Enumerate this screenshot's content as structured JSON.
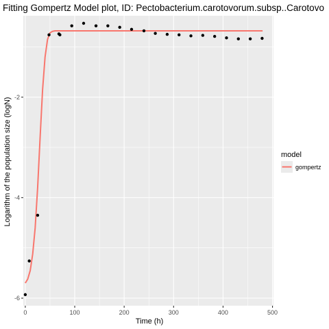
{
  "chart_data": {
    "type": "scatter",
    "title": "Fitting Gompertz Model plot, ID: Pectobacterium.carotovorum.subsp..Carotovo",
    "xlabel": "Time (h)",
    "ylabel": "Logarithm of the population size (logN)",
    "xlim": [
      -4,
      502
    ],
    "ylim": [
      -6.15,
      -0.38
    ],
    "x_ticks": [
      0,
      100,
      200,
      300,
      400,
      500
    ],
    "y_ticks": [
      -6,
      -4,
      -2
    ],
    "grid": true,
    "legend": {
      "title": "model",
      "entries": [
        "gompertz"
      ],
      "position": "right"
    },
    "colors": {
      "panel_background": "#ebebeb",
      "grid": "#ffffff",
      "points": "#000000",
      "model_line": "#f8766d"
    },
    "points": {
      "x": [
        0,
        8,
        25,
        48,
        68,
        70,
        94,
        118,
        143,
        167,
        191,
        215,
        240,
        263,
        287,
        311,
        335,
        359,
        383,
        407,
        431,
        455,
        479
      ],
      "y": [
        -5.93,
        -5.26,
        -4.35,
        -0.76,
        -0.74,
        -0.76,
        -0.58,
        -0.53,
        -0.58,
        -0.58,
        -0.61,
        -0.65,
        -0.68,
        -0.73,
        -0.75,
        -0.76,
        -0.78,
        -0.77,
        -0.79,
        -0.82,
        -0.84,
        -0.84,
        -0.83
      ]
    },
    "series": [
      {
        "name": "gompertz",
        "x": [
          0,
          5,
          10,
          15,
          20,
          25,
          30,
          35,
          40,
          45,
          50,
          55,
          60,
          80,
          100,
          200,
          300,
          400,
          480
        ],
        "y": [
          -5.7,
          -5.62,
          -5.45,
          -5.12,
          -4.6,
          -3.8,
          -2.8,
          -1.85,
          -1.2,
          -0.85,
          -0.72,
          -0.69,
          -0.68,
          -0.68,
          -0.68,
          -0.68,
          -0.68,
          -0.68,
          -0.68
        ]
      }
    ]
  }
}
